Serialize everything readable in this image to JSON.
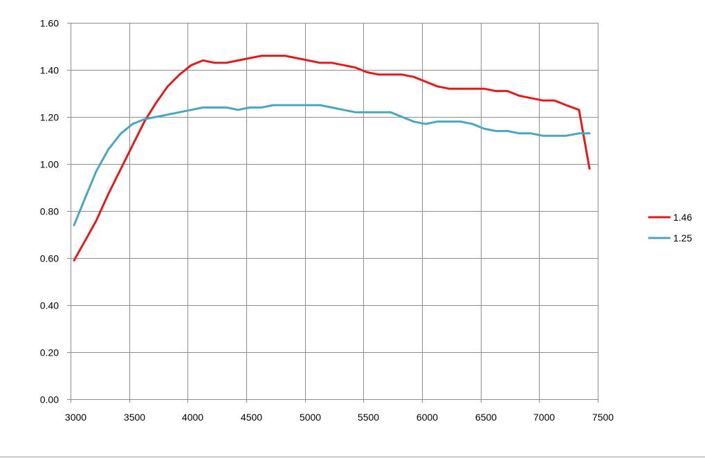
{
  "chart_data": {
    "type": "line",
    "title": "",
    "xlabel": "",
    "ylabel": "",
    "xlim": [
      3000,
      7500
    ],
    "ylim": [
      0,
      1.6
    ],
    "x_ticks": [
      3000,
      3500,
      4000,
      4500,
      5000,
      5500,
      6000,
      6500,
      7000,
      7500
    ],
    "x_tick_labels": [
      "3000",
      "3500",
      "4000",
      "4500",
      "5000",
      "5500",
      "6000",
      "6500",
      "7000",
      "7500"
    ],
    "y_ticks": [
      0,
      0.2,
      0.4,
      0.6,
      0.8,
      1.0,
      1.2,
      1.4,
      1.6
    ],
    "y_tick_labels": [
      "0.00",
      "0.20",
      "0.40",
      "0.60",
      "0.80",
      "1.00",
      "1.20",
      "1.40",
      "1.60"
    ],
    "grid": true,
    "legend_position": "right",
    "series": [
      {
        "name": "1.46",
        "color": "#e31a1c",
        "x": [
          3030,
          3120,
          3220,
          3320,
          3430,
          3530,
          3630,
          3730,
          3830,
          3930,
          4030,
          4130,
          4230,
          4330,
          4430,
          4530,
          4630,
          4730,
          4830,
          4930,
          5030,
          5130,
          5230,
          5330,
          5430,
          5530,
          5630,
          5730,
          5830,
          5930,
          6030,
          6130,
          6230,
          6330,
          6430,
          6530,
          6630,
          6730,
          6830,
          6930,
          7030,
          7130,
          7230,
          7340,
          7430
        ],
        "y": [
          0.59,
          0.67,
          0.76,
          0.87,
          0.98,
          1.08,
          1.18,
          1.26,
          1.33,
          1.38,
          1.42,
          1.44,
          1.43,
          1.43,
          1.44,
          1.45,
          1.46,
          1.46,
          1.46,
          1.45,
          1.44,
          1.43,
          1.43,
          1.42,
          1.41,
          1.39,
          1.38,
          1.38,
          1.38,
          1.37,
          1.35,
          1.33,
          1.32,
          1.32,
          1.32,
          1.32,
          1.31,
          1.31,
          1.29,
          1.28,
          1.27,
          1.27,
          1.25,
          1.23,
          0.98
        ]
      },
      {
        "name": "1.25",
        "color": "#4aa6c0",
        "x": [
          3030,
          3120,
          3220,
          3320,
          3430,
          3530,
          3630,
          3730,
          3830,
          3930,
          4030,
          4130,
          4230,
          4330,
          4430,
          4530,
          4630,
          4730,
          4830,
          4930,
          5030,
          5130,
          5230,
          5330,
          5430,
          5530,
          5630,
          5730,
          5830,
          5930,
          6030,
          6130,
          6230,
          6330,
          6430,
          6530,
          6630,
          6730,
          6830,
          6930,
          7030,
          7130,
          7230,
          7340,
          7430
        ],
        "y": [
          0.74,
          0.85,
          0.97,
          1.06,
          1.13,
          1.17,
          1.19,
          1.2,
          1.21,
          1.22,
          1.23,
          1.24,
          1.24,
          1.24,
          1.23,
          1.24,
          1.24,
          1.25,
          1.25,
          1.25,
          1.25,
          1.25,
          1.24,
          1.23,
          1.22,
          1.22,
          1.22,
          1.22,
          1.2,
          1.18,
          1.17,
          1.18,
          1.18,
          1.18,
          1.17,
          1.15,
          1.14,
          1.14,
          1.13,
          1.13,
          1.12,
          1.12,
          1.12,
          1.13,
          1.13
        ]
      }
    ]
  }
}
